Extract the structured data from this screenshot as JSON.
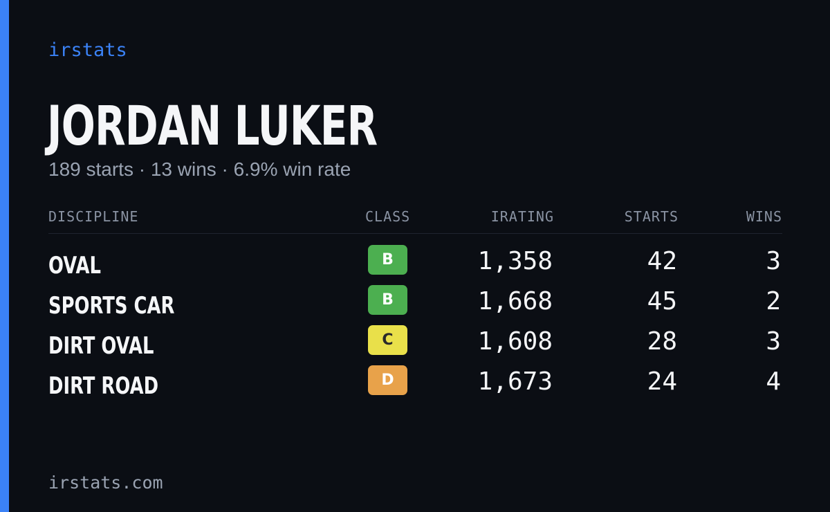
{
  "brand": "irstats",
  "player": {
    "name": "JORDAN LUKER",
    "summary": "189 starts · 13 wins · 6.9% win rate"
  },
  "table": {
    "headers": {
      "discipline": "DISCIPLINE",
      "class": "CLASS",
      "irating": "IRATING",
      "starts": "STARTS",
      "wins": "WINS"
    },
    "rows": [
      {
        "discipline": "OVAL",
        "class": "B",
        "irating": "1,358",
        "starts": "42",
        "wins": "3"
      },
      {
        "discipline": "SPORTS CAR",
        "class": "B",
        "irating": "1,668",
        "starts": "45",
        "wins": "2"
      },
      {
        "discipline": "DIRT OVAL",
        "class": "C",
        "irating": "1,608",
        "starts": "28",
        "wins": "3"
      },
      {
        "discipline": "DIRT ROAD",
        "class": "D",
        "irating": "1,673",
        "starts": "24",
        "wins": "4"
      }
    ]
  },
  "class_colors": {
    "B": {
      "bg": "#4caf50",
      "fg": "#ffffff"
    },
    "C": {
      "bg": "#e9e04a",
      "fg": "#2a2a2a"
    },
    "D": {
      "bg": "#e8a24a",
      "fg": "#ffffff"
    }
  },
  "colors": {
    "accent": "#3b82f6",
    "background": "#0b0e14",
    "text": "#f5f6f8",
    "muted": "#9aa3b2"
  },
  "footer": "irstats.com"
}
